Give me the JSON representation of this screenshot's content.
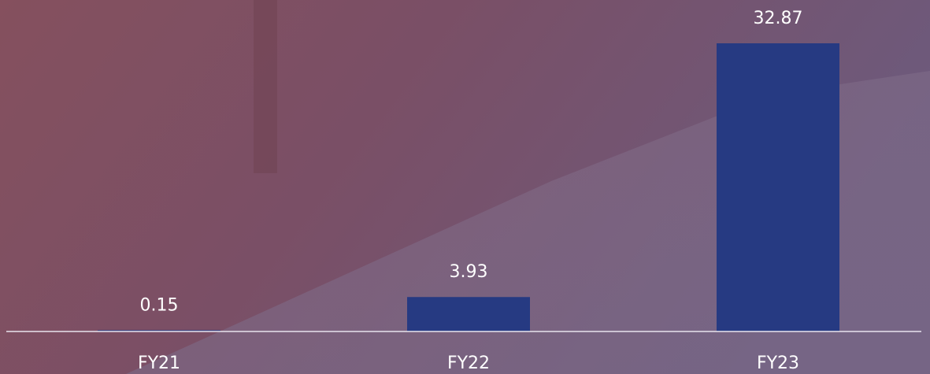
{
  "chart_data": {
    "type": "bar",
    "categories": [
      "FY21",
      "FY22",
      "FY23"
    ],
    "values": [
      0.15,
      3.93,
      32.87
    ],
    "color": "#263a82"
  }
}
